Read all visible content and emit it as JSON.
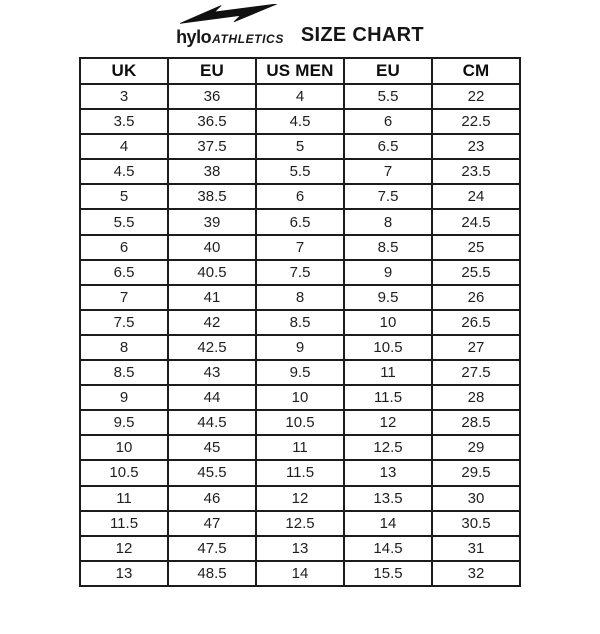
{
  "header": {
    "brand": {
      "name_primary": "hylo",
      "name_secondary": "ATHLETICS",
      "logo_icon": "lightning-bolt-icon"
    },
    "title": "SIZE CHART"
  },
  "chart_data": {
    "type": "table",
    "title": "SIZE CHART",
    "columns": [
      "UK",
      "EU",
      "US MEN",
      "EU",
      "CM"
    ],
    "rows": [
      [
        "3",
        "36",
        "4",
        "5.5",
        "22"
      ],
      [
        "3.5",
        "36.5",
        "4.5",
        "6",
        "22.5"
      ],
      [
        "4",
        "37.5",
        "5",
        "6.5",
        "23"
      ],
      [
        "4.5",
        "38",
        "5.5",
        "7",
        "23.5"
      ],
      [
        "5",
        "38.5",
        "6",
        "7.5",
        "24"
      ],
      [
        "5.5",
        "39",
        "6.5",
        "8",
        "24.5"
      ],
      [
        "6",
        "40",
        "7",
        "8.5",
        "25"
      ],
      [
        "6.5",
        "40.5",
        "7.5",
        "9",
        "25.5"
      ],
      [
        "7",
        "41",
        "8",
        "9.5",
        "26"
      ],
      [
        "7.5",
        "42",
        "8.5",
        "10",
        "26.5"
      ],
      [
        "8",
        "42.5",
        "9",
        "10.5",
        "27"
      ],
      [
        "8.5",
        "43",
        "9.5",
        "11",
        "27.5"
      ],
      [
        "9",
        "44",
        "10",
        "11.5",
        "28"
      ],
      [
        "9.5",
        "44.5",
        "10.5",
        "12",
        "28.5"
      ],
      [
        "10",
        "45",
        "11",
        "12.5",
        "29"
      ],
      [
        "10.5",
        "45.5",
        "11.5",
        "13",
        "29.5"
      ],
      [
        "11",
        "46",
        "12",
        "13.5",
        "30"
      ],
      [
        "11.5",
        "47",
        "12.5",
        "14",
        "30.5"
      ],
      [
        "12",
        "47.5",
        "13",
        "14.5",
        "31"
      ],
      [
        "13",
        "48.5",
        "14",
        "15.5",
        "32"
      ]
    ]
  },
  "colors": {
    "background": "#ffffff",
    "foreground": "#161616",
    "table_border": "#1c1c1c"
  }
}
